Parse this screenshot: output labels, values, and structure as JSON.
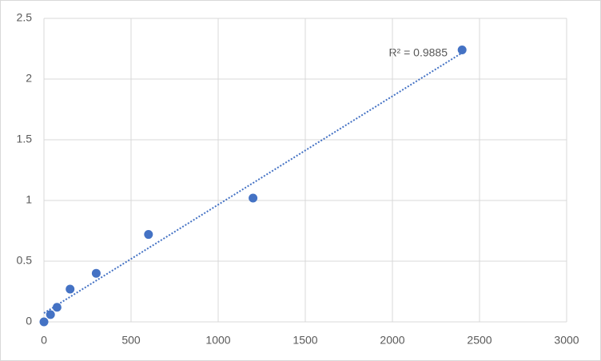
{
  "chart_data": {
    "type": "scatter",
    "x": [
      0,
      37.5,
      75,
      150,
      300,
      600,
      1200,
      2400
    ],
    "values": [
      0.0,
      0.06,
      0.12,
      0.27,
      0.4,
      0.72,
      1.02,
      2.24
    ],
    "color": "#4472c4",
    "xlim": [
      0,
      3000
    ],
    "xticks": [
      0,
      500,
      1000,
      1500,
      2000,
      2500,
      3000
    ],
    "ylim": [
      0,
      2.5
    ],
    "yticks": [
      0,
      0.5,
      1,
      1.5,
      2,
      2.5
    ],
    "grid": true,
    "trendline": {
      "type": "linear",
      "label": "R² = 0.9885"
    }
  }
}
